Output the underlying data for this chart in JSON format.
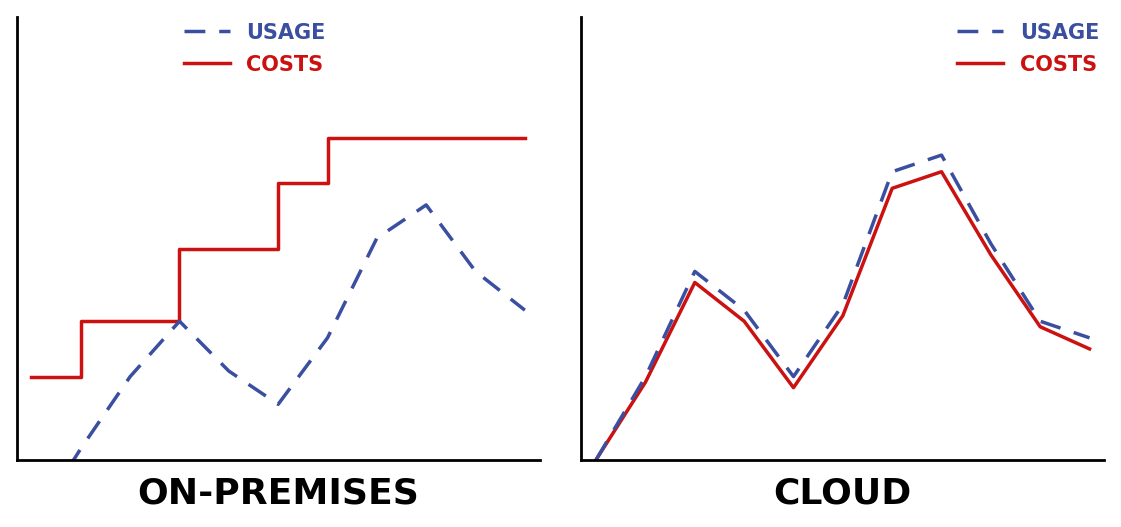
{
  "background_color": "#ffffff",
  "usage_color": "#3a4fa0",
  "costs_color": "#cc1111",
  "usage_label": "USAGE",
  "costs_label": "COSTS",
  "label_fontsize": 15,
  "xlabel_fontsize": 26,
  "onprem_xlabel": "ON-PREMISES",
  "cloud_xlabel": "CLOUD",
  "onprem_usage_x": [
    0,
    1,
    2,
    3,
    4,
    5,
    6,
    7,
    8,
    9,
    10
  ],
  "onprem_usage_y": [
    -1.2,
    0.2,
    1.5,
    2.5,
    1.6,
    1.0,
    2.2,
    4.0,
    4.6,
    3.4,
    2.7
  ],
  "onprem_costs_x": [
    0,
    0,
    1,
    1,
    3,
    3,
    5,
    5,
    6,
    6,
    10
  ],
  "onprem_costs_y": [
    1.5,
    1.5,
    1.5,
    2.5,
    2.5,
    3.8,
    3.8,
    5.0,
    5.0,
    5.8,
    5.8
  ],
  "cloud_usage_x": [
    0,
    1,
    2,
    3,
    4,
    5,
    6,
    7,
    8,
    9,
    10
  ],
  "cloud_usage_y": [
    0,
    1.5,
    3.4,
    2.7,
    1.5,
    2.8,
    5.2,
    5.5,
    3.9,
    2.5,
    2.2
  ],
  "cloud_costs_x": [
    0,
    1,
    2,
    3,
    4,
    5,
    6,
    7,
    8,
    9,
    10
  ],
  "cloud_costs_y": [
    0,
    1.4,
    3.2,
    2.5,
    1.3,
    2.6,
    4.9,
    5.2,
    3.7,
    2.4,
    2.0
  ],
  "line_width": 2.5,
  "dash_on": 6,
  "dash_off": 4,
  "ylim_max": 8,
  "xlim_min": -0.3,
  "xlim_max": 10.3
}
